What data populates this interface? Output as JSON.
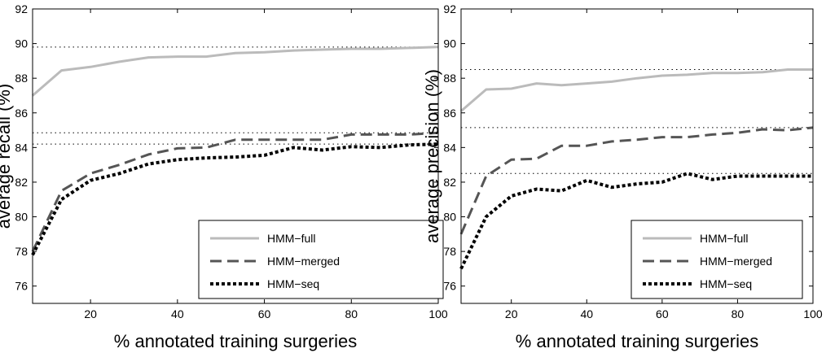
{
  "chart_data": [
    {
      "type": "line",
      "xlabel": "% annotated training surgeries",
      "ylabel": "average recall (%)",
      "xlim": [
        6.67,
        100
      ],
      "ylim": [
        75,
        92
      ],
      "xticks": [
        20,
        40,
        60,
        80,
        100
      ],
      "yticks": [
        76,
        78,
        80,
        82,
        84,
        86,
        88,
        90,
        92
      ],
      "legend_position": "bottom-right",
      "grid": false,
      "x": [
        6.67,
        13.33,
        20,
        26.67,
        33.33,
        40,
        46.67,
        53.33,
        60,
        66.67,
        73.33,
        80,
        86.67,
        93.33,
        100
      ],
      "series": [
        {
          "name": "HMM−full",
          "style": "solid",
          "color": "#bbbbbb",
          "values": [
            87.0,
            88.45,
            88.65,
            88.95,
            89.2,
            89.25,
            89.25,
            89.45,
            89.5,
            89.6,
            89.65,
            89.7,
            89.7,
            89.75,
            89.8
          ]
        },
        {
          "name": "HMM−merged",
          "style": "dashed",
          "color": "#555555",
          "values": [
            78.0,
            81.5,
            82.5,
            83.0,
            83.6,
            83.95,
            84.0,
            84.45,
            84.45,
            84.45,
            84.45,
            84.75,
            84.75,
            84.75,
            84.85
          ]
        },
        {
          "name": "HMM−seq",
          "style": "dotted",
          "color": "#000000",
          "values": [
            77.8,
            81.0,
            82.1,
            82.5,
            83.05,
            83.3,
            83.4,
            83.45,
            83.55,
            84.0,
            83.85,
            84.05,
            84.0,
            84.15,
            84.2
          ]
        }
      ],
      "reference_lines": [
        89.8,
        84.85,
        84.2
      ]
    },
    {
      "type": "line",
      "xlabel": "% annotated training surgeries",
      "ylabel": "average precision (%)",
      "xlim": [
        6.67,
        100
      ],
      "ylim": [
        75,
        92
      ],
      "xticks": [
        20,
        40,
        60,
        80,
        100
      ],
      "yticks": [
        76,
        78,
        80,
        82,
        84,
        86,
        88,
        90,
        92
      ],
      "legend_position": "bottom-right",
      "grid": false,
      "x": [
        6.67,
        13.33,
        20,
        26.67,
        33.33,
        40,
        46.67,
        53.33,
        60,
        66.67,
        73.33,
        80,
        86.67,
        93.33,
        100
      ],
      "series": [
        {
          "name": "HMM−full",
          "style": "solid",
          "color": "#bbbbbb",
          "values": [
            86.1,
            87.35,
            87.4,
            87.7,
            87.6,
            87.7,
            87.8,
            88.0,
            88.15,
            88.2,
            88.3,
            88.3,
            88.35,
            88.5,
            88.5
          ]
        },
        {
          "name": "HMM−merged",
          "style": "dashed",
          "color": "#555555",
          "values": [
            79.0,
            82.35,
            83.3,
            83.35,
            84.1,
            84.1,
            84.35,
            84.45,
            84.6,
            84.6,
            84.75,
            84.85,
            85.05,
            85.0,
            85.15
          ]
        },
        {
          "name": "HMM−seq",
          "style": "dotted",
          "color": "#000000",
          "values": [
            77.0,
            80.0,
            81.2,
            81.6,
            81.5,
            82.1,
            81.7,
            81.9,
            82.0,
            82.5,
            82.15,
            82.35,
            82.35,
            82.35,
            82.35
          ]
        }
      ],
      "reference_lines": [
        88.5,
        85.15,
        82.5
      ]
    }
  ]
}
